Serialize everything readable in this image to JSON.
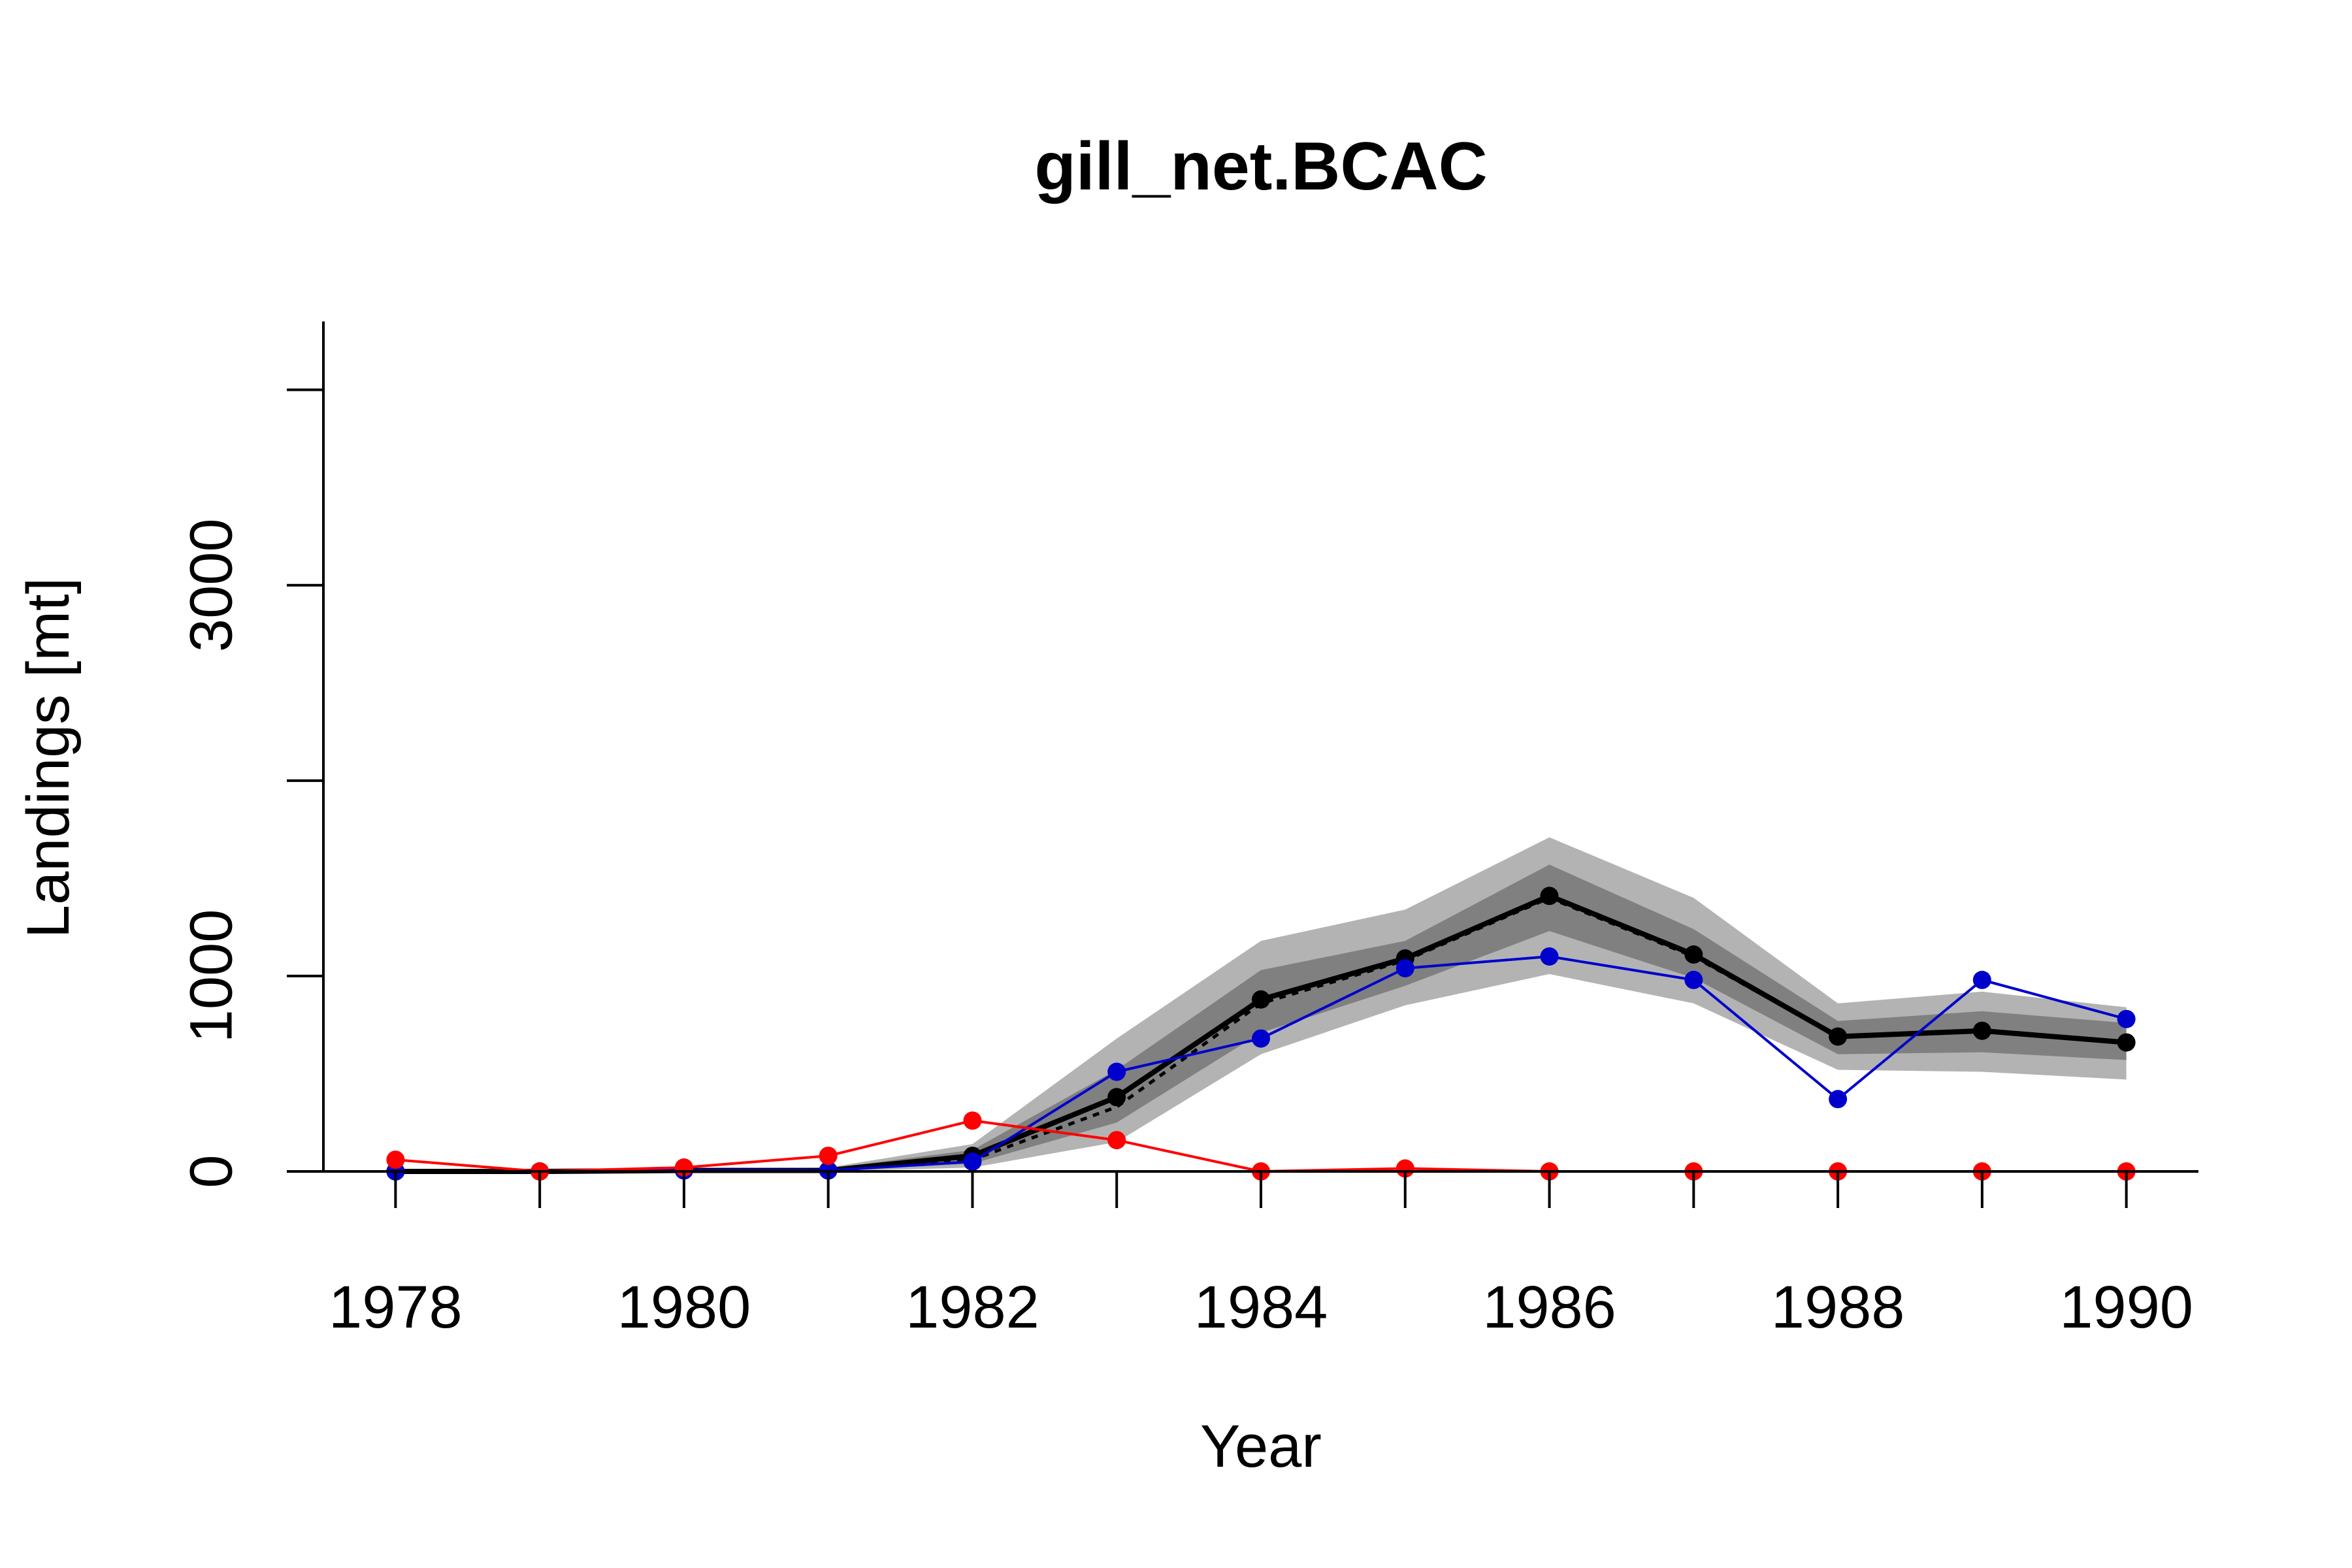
{
  "chart_data": {
    "type": "line",
    "title": "gill_net.BCAC",
    "xlabel": "Year",
    "ylabel": "Landings [mt]",
    "x": [
      1978,
      1979,
      1980,
      1981,
      1982,
      1983,
      1984,
      1985,
      1986,
      1987,
      1988,
      1989,
      1990
    ],
    "xticks": [
      1978,
      1980,
      1982,
      1984,
      1986,
      1988,
      1990
    ],
    "yticks": [
      0,
      1000,
      2000,
      3000,
      4000
    ],
    "ytick_labels": [
      "0",
      "1000",
      "",
      "3000",
      ""
    ],
    "xlim": [
      1977.5,
      1990.5
    ],
    "ylim": [
      0,
      4350
    ],
    "grid": false,
    "bands": [
      {
        "lower": [
          0,
          0,
          0,
          0,
          20,
          150,
          600,
          850,
          1010,
          860,
          520,
          510,
          470
        ],
        "upper": [
          5,
          5,
          10,
          20,
          140,
          680,
          1180,
          1340,
          1710,
          1400,
          860,
          920,
          840
        ],
        "color": "#b3b3b3"
      },
      {
        "lower": [
          0,
          0,
          0,
          0,
          40,
          250,
          710,
          950,
          1230,
          990,
          600,
          610,
          570
        ],
        "upper": [
          3,
          3,
          8,
          15,
          110,
          520,
          1030,
          1180,
          1570,
          1240,
          770,
          820,
          760
        ]
      }
    ],
    "series": [
      {
        "values": [
          0,
          0,
          5,
          5,
          80,
          380,
          880,
          1090,
          1410,
          1110,
          690,
          720,
          660
        ],
        "color": "#000000"
      },
      {
        "values": [
          0,
          0,
          5,
          5,
          60,
          330,
          860,
          1080,
          1400,
          1100,
          690,
          720,
          660
        ],
        "color": "#000000",
        "style": "dotted"
      },
      {
        "values": [
          0,
          0,
          5,
          5,
          50,
          510,
          680,
          1040,
          1100,
          980,
          370,
          980,
          780
        ],
        "color": "#0000cc"
      },
      {
        "values": [
          60,
          0,
          20,
          80,
          260,
          160,
          0,
          15,
          0,
          0,
          0,
          0,
          0
        ],
        "color": "#ff0000"
      }
    ]
  }
}
